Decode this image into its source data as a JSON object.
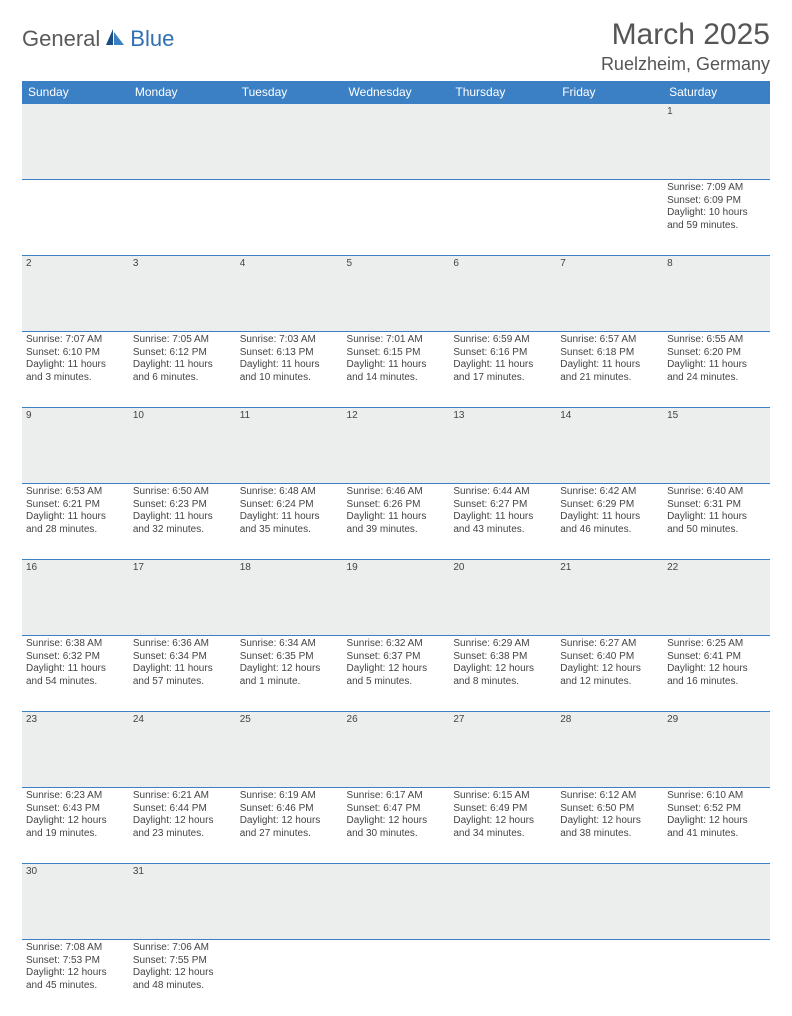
{
  "logo": {
    "part1": "General",
    "part2": "Blue"
  },
  "title": "March 2025",
  "location": "Ruelzheim, Germany",
  "colors": {
    "header_bg": "#3b7fc4",
    "header_text": "#ffffff",
    "daynum_bg": "#eceded",
    "border": "#3b7fc4",
    "logo_gray": "#5a5a5a",
    "logo_blue": "#2f6fb3"
  },
  "weekdays": [
    "Sunday",
    "Monday",
    "Tuesday",
    "Wednesday",
    "Thursday",
    "Friday",
    "Saturday"
  ],
  "weeks": [
    {
      "nums": [
        "",
        "",
        "",
        "",
        "",
        "",
        "1"
      ],
      "info": [
        "",
        "",
        "",
        "",
        "",
        "",
        "Sunrise: 7:09 AM\nSunset: 6:09 PM\nDaylight: 10 hours and 59 minutes."
      ]
    },
    {
      "nums": [
        "2",
        "3",
        "4",
        "5",
        "6",
        "7",
        "8"
      ],
      "info": [
        "Sunrise: 7:07 AM\nSunset: 6:10 PM\nDaylight: 11 hours and 3 minutes.",
        "Sunrise: 7:05 AM\nSunset: 6:12 PM\nDaylight: 11 hours and 6 minutes.",
        "Sunrise: 7:03 AM\nSunset: 6:13 PM\nDaylight: 11 hours and 10 minutes.",
        "Sunrise: 7:01 AM\nSunset: 6:15 PM\nDaylight: 11 hours and 14 minutes.",
        "Sunrise: 6:59 AM\nSunset: 6:16 PM\nDaylight: 11 hours and 17 minutes.",
        "Sunrise: 6:57 AM\nSunset: 6:18 PM\nDaylight: 11 hours and 21 minutes.",
        "Sunrise: 6:55 AM\nSunset: 6:20 PM\nDaylight: 11 hours and 24 minutes."
      ]
    },
    {
      "nums": [
        "9",
        "10",
        "11",
        "12",
        "13",
        "14",
        "15"
      ],
      "info": [
        "Sunrise: 6:53 AM\nSunset: 6:21 PM\nDaylight: 11 hours and 28 minutes.",
        "Sunrise: 6:50 AM\nSunset: 6:23 PM\nDaylight: 11 hours and 32 minutes.",
        "Sunrise: 6:48 AM\nSunset: 6:24 PM\nDaylight: 11 hours and 35 minutes.",
        "Sunrise: 6:46 AM\nSunset: 6:26 PM\nDaylight: 11 hours and 39 minutes.",
        "Sunrise: 6:44 AM\nSunset: 6:27 PM\nDaylight: 11 hours and 43 minutes.",
        "Sunrise: 6:42 AM\nSunset: 6:29 PM\nDaylight: 11 hours and 46 minutes.",
        "Sunrise: 6:40 AM\nSunset: 6:31 PM\nDaylight: 11 hours and 50 minutes."
      ]
    },
    {
      "nums": [
        "16",
        "17",
        "18",
        "19",
        "20",
        "21",
        "22"
      ],
      "info": [
        "Sunrise: 6:38 AM\nSunset: 6:32 PM\nDaylight: 11 hours and 54 minutes.",
        "Sunrise: 6:36 AM\nSunset: 6:34 PM\nDaylight: 11 hours and 57 minutes.",
        "Sunrise: 6:34 AM\nSunset: 6:35 PM\nDaylight: 12 hours and 1 minute.",
        "Sunrise: 6:32 AM\nSunset: 6:37 PM\nDaylight: 12 hours and 5 minutes.",
        "Sunrise: 6:29 AM\nSunset: 6:38 PM\nDaylight: 12 hours and 8 minutes.",
        "Sunrise: 6:27 AM\nSunset: 6:40 PM\nDaylight: 12 hours and 12 minutes.",
        "Sunrise: 6:25 AM\nSunset: 6:41 PM\nDaylight: 12 hours and 16 minutes."
      ]
    },
    {
      "nums": [
        "23",
        "24",
        "25",
        "26",
        "27",
        "28",
        "29"
      ],
      "info": [
        "Sunrise: 6:23 AM\nSunset: 6:43 PM\nDaylight: 12 hours and 19 minutes.",
        "Sunrise: 6:21 AM\nSunset: 6:44 PM\nDaylight: 12 hours and 23 minutes.",
        "Sunrise: 6:19 AM\nSunset: 6:46 PM\nDaylight: 12 hours and 27 minutes.",
        "Sunrise: 6:17 AM\nSunset: 6:47 PM\nDaylight: 12 hours and 30 minutes.",
        "Sunrise: 6:15 AM\nSunset: 6:49 PM\nDaylight: 12 hours and 34 minutes.",
        "Sunrise: 6:12 AM\nSunset: 6:50 PM\nDaylight: 12 hours and 38 minutes.",
        "Sunrise: 6:10 AM\nSunset: 6:52 PM\nDaylight: 12 hours and 41 minutes."
      ]
    },
    {
      "nums": [
        "30",
        "31",
        "",
        "",
        "",
        "",
        ""
      ],
      "info": [
        "Sunrise: 7:08 AM\nSunset: 7:53 PM\nDaylight: 12 hours and 45 minutes.",
        "Sunrise: 7:06 AM\nSunset: 7:55 PM\nDaylight: 12 hours and 48 minutes.",
        "",
        "",
        "",
        "",
        ""
      ]
    }
  ]
}
